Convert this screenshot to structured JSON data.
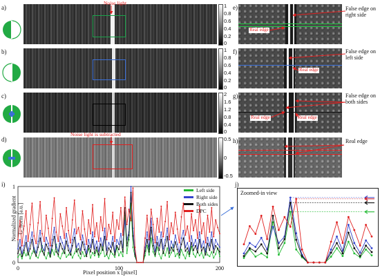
{
  "panels": {
    "a": {
      "letter": "a)",
      "colorbar": [
        "1",
        "0.8",
        "0.6",
        "0.4",
        "0.2",
        "0"
      ],
      "annotation": "Noise light",
      "box": "#1aa34a"
    },
    "b": {
      "letter": "b)",
      "colorbar": [
        "1",
        "0.8",
        "0.6",
        "0.4",
        "0.2",
        "0"
      ],
      "box": "#3a6fd8"
    },
    "c": {
      "letter": "c)",
      "colorbar": [
        "2",
        "1.6",
        "1.2",
        "0.8",
        "0.4",
        "0"
      ],
      "box": "#111111"
    },
    "d": {
      "letter": "d)",
      "colorbar": [
        "0.5",
        "0",
        "-0.5"
      ],
      "annotation": "Noise light is subtracted",
      "box": "#e02020"
    },
    "e": {
      "letter": "e)",
      "note": "False edge on right side",
      "real_label": "Real edge"
    },
    "f": {
      "letter": "f)",
      "note": "False edge on left side",
      "real_label": "Real edge"
    },
    "g": {
      "letter": "g)",
      "note": "False edge on both sides",
      "real_label_1": "Real edge",
      "real_label_2": "Real edge"
    },
    "h": {
      "letter": "h)",
      "note": "Real edge"
    },
    "i": {
      "letter": "i)"
    },
    "j": {
      "letter": "j)",
      "title": "Zoomed-in view"
    }
  },
  "chart_data": {
    "type": "line",
    "xlabel": "Pixel position x [pixel]",
    "ylabel": "Normalized gradient",
    "ylabel_sub": "G_norm [a.u.]",
    "x_ticks": [
      "0",
      "100",
      "200"
    ],
    "y_ticks": [
      "0",
      "1"
    ],
    "xlim": [
      0,
      200
    ],
    "ylim": [
      0,
      1
    ],
    "series": [
      {
        "name": "Left side",
        "color": "#22bb33",
        "values": [
          0.07,
          0.11,
          0.05,
          0.14,
          0.09,
          0.16,
          0.05,
          0.12,
          0.19,
          0.08,
          0.06,
          0.14,
          0.22,
          0.1,
          0.05,
          0.13,
          0.07,
          0.17,
          0.1,
          0.24,
          0.08,
          0.05,
          0.12,
          0.18,
          0.07,
          0.1,
          0.15,
          0.06,
          0.12,
          0.2,
          0.09,
          0.05,
          0.14,
          0.08,
          0.11,
          0.18,
          0.06,
          0.13,
          0.09,
          0.16,
          0.07,
          0.12,
          0.22,
          0.08,
          0.1,
          0.05,
          0.15,
          0.11,
          0.07,
          0.2,
          0.09,
          0.14,
          0.08,
          0.62,
          0.12,
          0.3,
          0.78,
          0.2,
          0.08,
          0.0,
          0.0,
          0.0,
          0.0,
          0.09,
          0.22,
          0.1,
          0.32,
          0.14,
          0.08,
          0.2,
          0.11,
          0.05,
          0.15,
          0.09,
          0.19,
          0.07,
          0.13,
          0.23,
          0.08,
          0.12,
          0.06,
          0.17,
          0.1,
          0.05,
          0.14,
          0.08,
          0.21,
          0.11,
          0.07,
          0.15,
          0.09,
          0.13,
          0.06,
          0.18,
          0.1,
          0.08,
          0.14,
          0.06,
          0.11,
          0.19,
          0.08
        ]
      },
      {
        "name": "Right side",
        "color": "#3344cc",
        "values": [
          0.18,
          0.3,
          0.12,
          0.22,
          0.35,
          0.15,
          0.26,
          0.4,
          0.19,
          0.13,
          0.28,
          0.42,
          0.2,
          0.16,
          0.33,
          0.25,
          0.12,
          0.3,
          0.46,
          0.2,
          0.15,
          0.34,
          0.26,
          0.18,
          0.38,
          0.22,
          0.14,
          0.3,
          0.44,
          0.2,
          0.25,
          0.16,
          0.36,
          0.24,
          0.12,
          0.3,
          0.2,
          0.4,
          0.18,
          0.28,
          0.15,
          0.32,
          0.22,
          0.45,
          0.16,
          0.26,
          0.2,
          0.34,
          0.14,
          0.3,
          0.24,
          0.38,
          0.2,
          0.55,
          0.3,
          0.4,
          1.0,
          0.45,
          0.12,
          0.0,
          0.0,
          0.0,
          0.0,
          0.2,
          0.4,
          0.18,
          0.58,
          0.3,
          0.15,
          0.34,
          0.22,
          0.4,
          0.18,
          0.3,
          0.45,
          0.16,
          0.28,
          0.2,
          0.36,
          0.24,
          0.14,
          0.32,
          0.42,
          0.2,
          0.26,
          0.15,
          0.35,
          0.22,
          0.3,
          0.18,
          0.4,
          0.2,
          0.28,
          0.14,
          0.33,
          0.22,
          0.4,
          0.18,
          0.3,
          0.24,
          0.2
        ]
      },
      {
        "name": "Both sides",
        "color": "#111111",
        "values": [
          0.12,
          0.2,
          0.08,
          0.16,
          0.26,
          0.1,
          0.18,
          0.3,
          0.14,
          0.09,
          0.2,
          0.32,
          0.15,
          0.1,
          0.24,
          0.18,
          0.08,
          0.22,
          0.34,
          0.14,
          0.1,
          0.25,
          0.18,
          0.12,
          0.28,
          0.16,
          0.1,
          0.22,
          0.33,
          0.14,
          0.18,
          0.11,
          0.27,
          0.17,
          0.08,
          0.22,
          0.14,
          0.3,
          0.12,
          0.2,
          0.1,
          0.24,
          0.16,
          0.34,
          0.11,
          0.19,
          0.14,
          0.26,
          0.1,
          0.22,
          0.17,
          0.28,
          0.14,
          0.72,
          0.22,
          0.36,
          0.92,
          0.35,
          0.1,
          0.0,
          0.0,
          0.0,
          0.0,
          0.15,
          0.3,
          0.14,
          0.46,
          0.22,
          0.1,
          0.26,
          0.16,
          0.3,
          0.12,
          0.22,
          0.34,
          0.12,
          0.2,
          0.15,
          0.27,
          0.17,
          0.1,
          0.24,
          0.32,
          0.15,
          0.19,
          0.11,
          0.26,
          0.16,
          0.22,
          0.13,
          0.3,
          0.15,
          0.2,
          0.1,
          0.25,
          0.16,
          0.3,
          0.13,
          0.22,
          0.18,
          0.14
        ]
      },
      {
        "name": "DPC",
        "color": "#e02020",
        "values": [
          0.3,
          0.55,
          0.22,
          0.48,
          0.68,
          0.28,
          0.5,
          0.78,
          0.35,
          0.25,
          0.52,
          0.8,
          0.38,
          0.28,
          0.62,
          0.45,
          0.22,
          0.58,
          0.85,
          0.4,
          0.28,
          0.64,
          0.48,
          0.32,
          0.72,
          0.42,
          0.26,
          0.56,
          0.82,
          0.38,
          0.46,
          0.3,
          0.68,
          0.44,
          0.24,
          0.56,
          0.38,
          0.76,
          0.34,
          0.52,
          0.28,
          0.6,
          0.42,
          0.84,
          0.3,
          0.5,
          0.38,
          0.66,
          0.28,
          0.56,
          0.44,
          0.72,
          0.36,
          0.86,
          0.5,
          0.7,
          0.55,
          0.98,
          0.2,
          0.0,
          0.0,
          0.0,
          0.0,
          0.32,
          0.62,
          0.3,
          0.7,
          0.5,
          0.26,
          0.58,
          0.4,
          0.74,
          0.34,
          0.54,
          0.8,
          0.3,
          0.52,
          0.38,
          0.66,
          0.44,
          0.26,
          0.6,
          0.78,
          0.36,
          0.48,
          0.28,
          0.64,
          0.42,
          0.56,
          0.32,
          0.74,
          0.38,
          0.52,
          0.26,
          0.62,
          0.4,
          0.72,
          0.34,
          0.56,
          0.46,
          0.38
        ]
      }
    ],
    "zoom_range": [
      48,
      70
    ],
    "legend": "top-right"
  }
}
